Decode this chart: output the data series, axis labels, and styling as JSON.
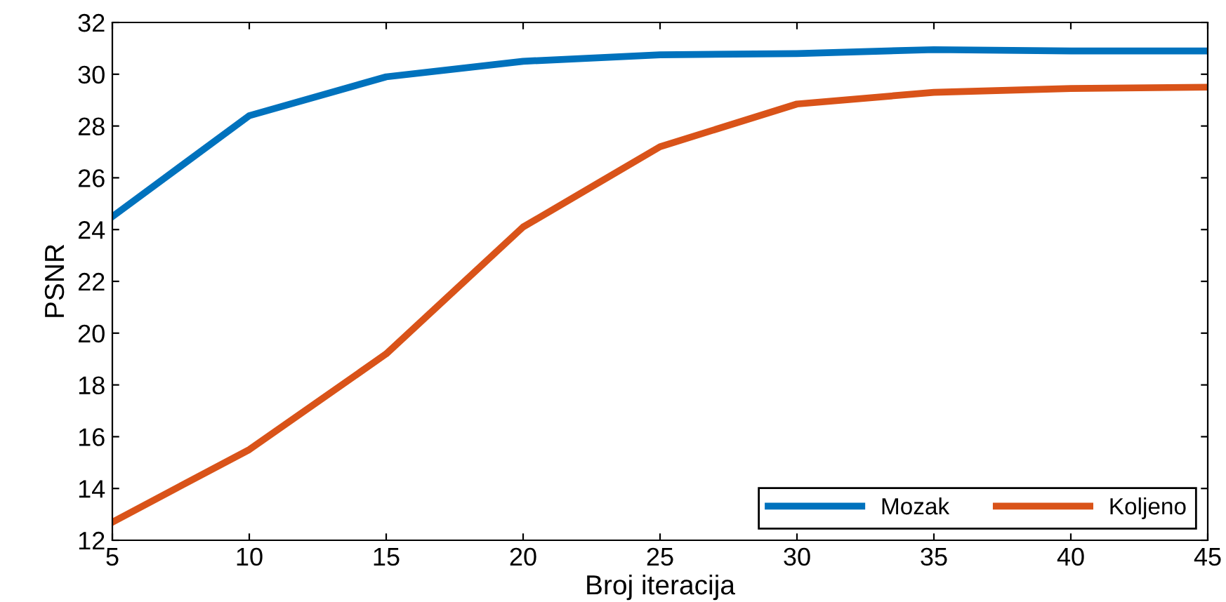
{
  "chart_data": {
    "type": "line",
    "xlabel": "Broj iteracija",
    "ylabel": "PSNR",
    "x": [
      5,
      10,
      15,
      20,
      25,
      30,
      35,
      40,
      45
    ],
    "series": [
      {
        "name": "Mozak",
        "color": "#0072bd",
        "values": [
          24.5,
          28.4,
          29.9,
          30.5,
          30.75,
          30.8,
          30.95,
          30.9,
          30.9
        ]
      },
      {
        "name": "Koljeno",
        "color": "#d95319",
        "values": [
          12.7,
          15.5,
          19.2,
          24.1,
          27.2,
          28.85,
          29.3,
          29.45,
          29.5
        ]
      }
    ],
    "xlim": [
      5,
      45
    ],
    "xticks": [
      5,
      10,
      15,
      20,
      25,
      30,
      35,
      40,
      45
    ],
    "ylim": [
      12,
      32
    ],
    "yticks": [
      12,
      14,
      16,
      18,
      20,
      22,
      24,
      26,
      28,
      30,
      32
    ],
    "grid": false,
    "legend": "bottom right",
    "line_style": "solid",
    "marker": "none"
  }
}
